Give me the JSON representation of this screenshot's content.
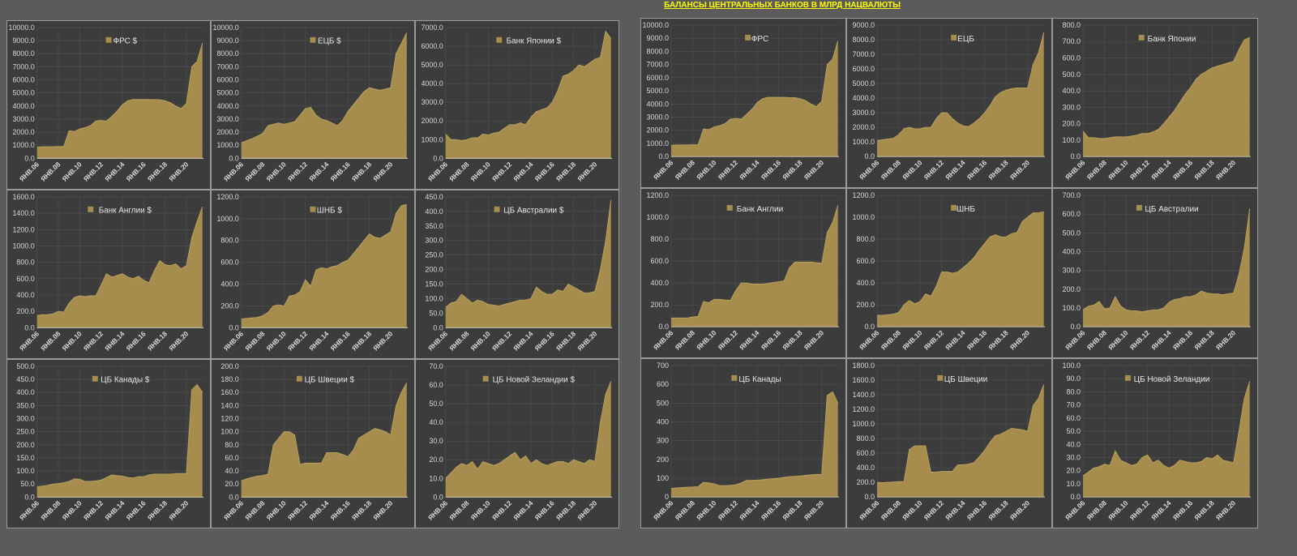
{
  "title": "БАЛАНСЫ ЦЕНТРАЛЬНЫХ БАНКОВ В МЛРД НАЦВАЛЮТЫ",
  "colors": {
    "fill": "#a68d4e",
    "line": "#b89f5c",
    "panel": "#3c3c3c",
    "grid": "#505050",
    "title": "#ffff00"
  },
  "chart_data": [
    {
      "block": "left",
      "type": "area",
      "title": "ФРС $",
      "ylim": [
        0,
        10000
      ],
      "ystep": 1000,
      "decimals": 1,
      "xticks": [
        "ЯНВ.06",
        "ЯНВ.08",
        "ЯНВ.10",
        "ЯНВ.12",
        "ЯНВ.14",
        "ЯНВ.16",
        "ЯНВ.18",
        "ЯНВ.20"
      ],
      "values": [
        850,
        880,
        880,
        880,
        900,
        900,
        2100,
        2050,
        2250,
        2350,
        2500,
        2850,
        2900,
        2850,
        3200,
        3600,
        4100,
        4400,
        4500,
        4500,
        4500,
        4500,
        4480,
        4480,
        4400,
        4250,
        4000,
        3800,
        4200,
        7000,
        7400,
        8800
      ]
    },
    {
      "block": "left",
      "type": "area",
      "title": "ЕЦБ $",
      "ylim": [
        0,
        10000
      ],
      "ystep": 1000,
      "decimals": 1,
      "xticks": [
        "ЯНВ.06",
        "ЯНВ.08",
        "ЯНВ.10",
        "ЯНВ.12",
        "ЯНВ.14",
        "ЯНВ.16",
        "ЯНВ.18",
        "ЯНВ.20"
      ],
      "values": [
        1200,
        1350,
        1500,
        1700,
        1900,
        2500,
        2600,
        2700,
        2600,
        2700,
        2800,
        3300,
        3800,
        3900,
        3300,
        3000,
        2900,
        2700,
        2500,
        2900,
        3600,
        4100,
        4600,
        5100,
        5400,
        5300,
        5200,
        5300,
        5400,
        8000,
        8800,
        9600
      ]
    },
    {
      "block": "left",
      "type": "area",
      "title": "Банк Японии $",
      "ylim": [
        0,
        7000
      ],
      "ystep": 1000,
      "decimals": 1,
      "xticks": [
        "ЯНВ.06",
        "ЯНВ.08",
        "ЯНВ.10",
        "ЯНВ.12",
        "ЯНВ.14",
        "ЯНВ.16",
        "ЯНВ.18",
        "ЯНВ.20"
      ],
      "values": [
        1300,
        1000,
        1000,
        950,
        1000,
        1100,
        1100,
        1300,
        1250,
        1350,
        1400,
        1600,
        1800,
        1800,
        1900,
        1800,
        2200,
        2500,
        2600,
        2700,
        3000,
        3600,
        4400,
        4500,
        4700,
        5000,
        4900,
        5100,
        5300,
        5400,
        6800,
        6400
      ]
    },
    {
      "block": "left",
      "type": "area",
      "title": "Банк Англии $",
      "ylim": [
        0,
        1600
      ],
      "ystep": 200,
      "decimals": 1,
      "xticks": [
        "ЯНВ.06",
        "ЯНВ.08",
        "ЯНВ.10",
        "ЯНВ.12",
        "ЯНВ.14",
        "ЯНВ.16",
        "ЯНВ.18",
        "ЯНВ.20"
      ],
      "values": [
        150,
        160,
        160,
        170,
        200,
        190,
        300,
        370,
        390,
        380,
        390,
        390,
        520,
        660,
        620,
        640,
        660,
        620,
        600,
        630,
        580,
        550,
        700,
        820,
        770,
        760,
        780,
        720,
        760,
        1100,
        1300,
        1480
      ]
    },
    {
      "block": "left",
      "type": "area",
      "title": "ШНБ $",
      "ylim": [
        0,
        1200
      ],
      "ystep": 200,
      "decimals": 1,
      "xticks": [
        "ЯНВ.06",
        "ЯНВ.08",
        "ЯНВ.10",
        "ЯНВ.12",
        "ЯНВ.14",
        "ЯНВ.16",
        "ЯНВ.18",
        "ЯНВ.20"
      ],
      "values": [
        80,
        85,
        90,
        95,
        110,
        140,
        200,
        210,
        200,
        290,
        300,
        330,
        440,
        380,
        530,
        550,
        540,
        560,
        570,
        600,
        620,
        680,
        740,
        800,
        860,
        830,
        820,
        850,
        880,
        1050,
        1120,
        1130
      ]
    },
    {
      "block": "left",
      "type": "area",
      "title": "ЦБ Австралии $",
      "ylim": [
        0,
        450
      ],
      "ystep": 50,
      "decimals": 1,
      "xticks": [
        "ЯНВ.06",
        "ЯНВ.08",
        "ЯНВ.10",
        "ЯНВ.12",
        "ЯНВ.14",
        "ЯНВ.16",
        "ЯНВ.18",
        "ЯНВ.20"
      ],
      "values": [
        70,
        85,
        90,
        115,
        100,
        85,
        95,
        90,
        80,
        78,
        75,
        80,
        85,
        90,
        95,
        95,
        100,
        140,
        125,
        115,
        115,
        130,
        125,
        150,
        140,
        130,
        120,
        120,
        125,
        200,
        300,
        440
      ]
    },
    {
      "block": "left",
      "type": "area",
      "title": "ЦБ Канады $",
      "ylim": [
        0,
        500
      ],
      "ystep": 50,
      "decimals": 1,
      "xticks": [
        "ЯНВ.06",
        "ЯНВ.08",
        "ЯНВ.10",
        "ЯНВ.12",
        "ЯНВ.14",
        "ЯНВ.16",
        "ЯНВ.18",
        "ЯНВ.20"
      ],
      "values": [
        40,
        42,
        45,
        50,
        52,
        55,
        60,
        70,
        68,
        60,
        60,
        62,
        65,
        75,
        85,
        82,
        80,
        75,
        73,
        78,
        78,
        85,
        88,
        88,
        88,
        88,
        90,
        90,
        90,
        410,
        430,
        400
      ]
    },
    {
      "block": "left",
      "type": "area",
      "title": "ЦБ Швеции $",
      "ylim": [
        0,
        200
      ],
      "ystep": 20,
      "decimals": 1,
      "xticks": [
        "ЯНВ.06",
        "ЯНВ.08",
        "ЯНВ.10",
        "ЯНВ.12",
        "ЯНВ.14",
        "ЯНВ.16",
        "ЯНВ.18",
        "ЯНВ.20"
      ],
      "values": [
        25,
        28,
        30,
        32,
        33,
        35,
        80,
        90,
        100,
        100,
        95,
        50,
        52,
        52,
        52,
        52,
        68,
        68,
        68,
        65,
        62,
        72,
        90,
        95,
        100,
        105,
        103,
        100,
        95,
        140,
        160,
        175
      ]
    },
    {
      "block": "left",
      "type": "area",
      "title": "ЦБ Новой Зеландии $",
      "ylim": [
        0,
        70
      ],
      "ystep": 10,
      "decimals": 1,
      "xticks": [
        "ЯНВ.06",
        "ЯНВ.08",
        "ЯНВ.10",
        "ЯНВ.12",
        "ЯНВ.14",
        "ЯНВ.16",
        "ЯНВ.18",
        "ЯНВ.20"
      ],
      "values": [
        10,
        13,
        16,
        18,
        17,
        19,
        15,
        19,
        18,
        17,
        18,
        20,
        22,
        24,
        20,
        22,
        18,
        20,
        18,
        17,
        18,
        19,
        19,
        18,
        20,
        19,
        18,
        20,
        19,
        40,
        55,
        62
      ]
    },
    {
      "block": "right",
      "type": "area",
      "title": "ФРС",
      "ylim": [
        0,
        10000
      ],
      "ystep": 1000,
      "decimals": 1,
      "xticks": [
        "ЯНВ.06",
        "ЯНВ.08",
        "ЯНВ.10",
        "ЯНВ.12",
        "ЯНВ.14",
        "ЯНВ.16",
        "ЯНВ.18",
        "ЯНВ.20"
      ],
      "values": [
        850,
        880,
        880,
        880,
        900,
        900,
        2100,
        2050,
        2250,
        2350,
        2500,
        2850,
        2900,
        2850,
        3200,
        3600,
        4100,
        4400,
        4500,
        4500,
        4500,
        4500,
        4480,
        4480,
        4400,
        4250,
        4000,
        3800,
        4200,
        7000,
        7400,
        8800
      ]
    },
    {
      "block": "right",
      "type": "area",
      "title": "ЕЦБ",
      "ylim": [
        0,
        9000
      ],
      "ystep": 1000,
      "decimals": 1,
      "xticks": [
        "ЯНВ.06",
        "ЯНВ.08",
        "ЯНВ.10",
        "ЯНВ.12",
        "ЯНВ.14",
        "ЯНВ.16",
        "ЯНВ.18",
        "ЯНВ.20"
      ],
      "values": [
        1100,
        1150,
        1200,
        1250,
        1500,
        1900,
        2000,
        1900,
        1900,
        2000,
        2000,
        2600,
        3000,
        3000,
        2600,
        2300,
        2100,
        2050,
        2300,
        2600,
        3000,
        3500,
        4100,
        4400,
        4550,
        4650,
        4700,
        4700,
        4700,
        6300,
        7100,
        8500
      ]
    },
    {
      "block": "right",
      "type": "area",
      "title": "Банк Японии",
      "ylim": [
        0,
        800
      ],
      "ystep": 100,
      "decimals": 1,
      "xticks": [
        "ЯНВ.06",
        "ЯНВ.08",
        "ЯНВ.10",
        "ЯНВ.12",
        "ЯНВ.14",
        "ЯНВ.16",
        "ЯНВ.18",
        "ЯНВ.20"
      ],
      "values": [
        155,
        115,
        115,
        110,
        110,
        115,
        120,
        120,
        120,
        125,
        130,
        140,
        140,
        150,
        165,
        200,
        240,
        280,
        330,
        380,
        420,
        470,
        500,
        520,
        540,
        550,
        560,
        570,
        580,
        650,
        710,
        725
      ]
    },
    {
      "block": "right",
      "type": "area",
      "title": "Банк Англии",
      "ylim": [
        0,
        1200
      ],
      "ystep": 200,
      "decimals": 1,
      "xticks": [
        "ЯНВ.06",
        "ЯНВ.08",
        "ЯНВ.10",
        "ЯНВ.12",
        "ЯНВ.14",
        "ЯНВ.16",
        "ЯНВ.18",
        "ЯНВ.20"
      ],
      "values": [
        80,
        80,
        80,
        80,
        90,
        95,
        230,
        220,
        250,
        250,
        245,
        240,
        330,
        400,
        400,
        390,
        390,
        390,
        395,
        405,
        410,
        420,
        540,
        590,
        590,
        590,
        590,
        585,
        580,
        860,
        950,
        1110
      ]
    },
    {
      "block": "right",
      "type": "area",
      "title": "ШНБ",
      "ylim": [
        0,
        1200
      ],
      "ystep": 200,
      "decimals": 1,
      "xticks": [
        "ЯНВ.06",
        "ЯНВ.08",
        "ЯНВ.10",
        "ЯНВ.12",
        "ЯНВ.14",
        "ЯНВ.16",
        "ЯНВ.18",
        "ЯНВ.20"
      ],
      "values": [
        105,
        105,
        110,
        115,
        130,
        200,
        240,
        210,
        230,
        300,
        280,
        370,
        500,
        500,
        490,
        500,
        540,
        580,
        630,
        700,
        760,
        820,
        840,
        820,
        820,
        850,
        860,
        960,
        1000,
        1040,
        1040,
        1050
      ]
    },
    {
      "block": "right",
      "type": "area",
      "title": "ЦБ Австралии",
      "ylim": [
        0,
        700
      ],
      "ystep": 100,
      "decimals": 1,
      "xticks": [
        "ЯНВ.06",
        "ЯНВ.08",
        "ЯНВ.10",
        "ЯНВ.12",
        "ЯНВ.14",
        "ЯНВ.16",
        "ЯНВ.18",
        "ЯНВ.20"
      ],
      "values": [
        90,
        110,
        115,
        135,
        95,
        100,
        160,
        110,
        90,
        85,
        85,
        80,
        85,
        90,
        90,
        100,
        130,
        145,
        150,
        160,
        160,
        170,
        190,
        180,
        175,
        175,
        170,
        175,
        180,
        280,
        420,
        630
      ]
    },
    {
      "block": "right",
      "type": "area",
      "title": "ЦБ Канады",
      "ylim": [
        0,
        700
      ],
      "ystep": 100,
      "decimals": 0,
      "xticks": [
        "ЯНВ.06",
        "ЯНВ.08",
        "ЯНВ.10",
        "ЯНВ.12",
        "ЯНВ.14",
        "ЯНВ.16",
        "ЯНВ.18",
        "ЯНВ.20"
      ],
      "values": [
        45,
        48,
        50,
        52,
        53,
        55,
        78,
        75,
        70,
        60,
        60,
        62,
        65,
        75,
        88,
        88,
        90,
        92,
        95,
        98,
        100,
        105,
        108,
        110,
        112,
        115,
        118,
        120,
        120,
        540,
        560,
        500
      ]
    },
    {
      "block": "right",
      "type": "area",
      "title": "ЦБ Швеции",
      "ylim": [
        0,
        1800
      ],
      "ystep": 200,
      "decimals": 1,
      "xticks": [
        "ЯНВ.06",
        "ЯНВ.08",
        "ЯНВ.10",
        "ЯНВ.12",
        "ЯНВ.14",
        "ЯНВ.16",
        "ЯНВ.18",
        "ЯНВ.20"
      ],
      "values": [
        200,
        195,
        200,
        205,
        210,
        210,
        650,
        700,
        700,
        700,
        340,
        340,
        350,
        350,
        350,
        440,
        440,
        450,
        470,
        550,
        640,
        750,
        840,
        860,
        900,
        940,
        930,
        920,
        900,
        1250,
        1350,
        1540
      ]
    },
    {
      "block": "right",
      "type": "area",
      "title": "ЦБ Новой Зеландии",
      "ylim": [
        0,
        100
      ],
      "ystep": 10,
      "decimals": 1,
      "xticks": [
        "ЯНВ.06",
        "ЯНВ.08",
        "ЯНВ.10",
        "ЯНВ.12",
        "ЯНВ.14",
        "ЯНВ.16",
        "ЯНВ.18",
        "ЯНВ.20"
      ],
      "values": [
        16,
        19,
        22,
        23,
        25,
        24,
        35,
        28,
        26,
        24,
        25,
        30,
        32,
        26,
        28,
        24,
        22,
        24,
        28,
        27,
        26,
        26,
        27,
        30,
        29,
        32,
        28,
        27,
        26,
        50,
        75,
        88
      ]
    }
  ],
  "x_start_year": 2006,
  "x_step_years": 0.5,
  "x_end_year": 2021.6
}
